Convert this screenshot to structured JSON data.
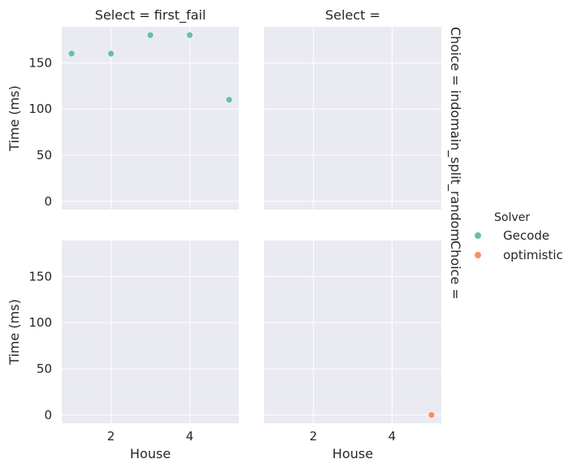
{
  "chart_data": {
    "type": "scatter",
    "x_label": "House",
    "y_label": "Time (ms)",
    "xlim": [
      0.75,
      5.25
    ],
    "ylim": [
      -9,
      189
    ],
    "x_ticks": [
      2,
      4
    ],
    "y_ticks": [
      0,
      50,
      100,
      150
    ],
    "grid": true,
    "legend": {
      "title": "Solver",
      "position": "right",
      "entries": [
        {
          "name": "Gecode",
          "color": "#66c2a5"
        },
        {
          "name": "optimistic",
          "color": "#fc8d62"
        }
      ]
    },
    "col_titles": [
      "Select = first_fail",
      "Select ="
    ],
    "row_titles": [
      "Choice = indomain_split_random",
      "Choice ="
    ],
    "panels": [
      {
        "row": 0,
        "col": 0,
        "series": [
          {
            "name": "Gecode",
            "x": [
              1,
              2,
              3,
              4,
              5
            ],
            "y": [
              160,
              160,
              180,
              180,
              110
            ]
          }
        ]
      },
      {
        "row": 0,
        "col": 1,
        "series": []
      },
      {
        "row": 1,
        "col": 0,
        "series": []
      },
      {
        "row": 1,
        "col": 1,
        "series": [
          {
            "name": "optimistic",
            "x": [
              5
            ],
            "y": [
              0
            ]
          }
        ]
      }
    ]
  }
}
